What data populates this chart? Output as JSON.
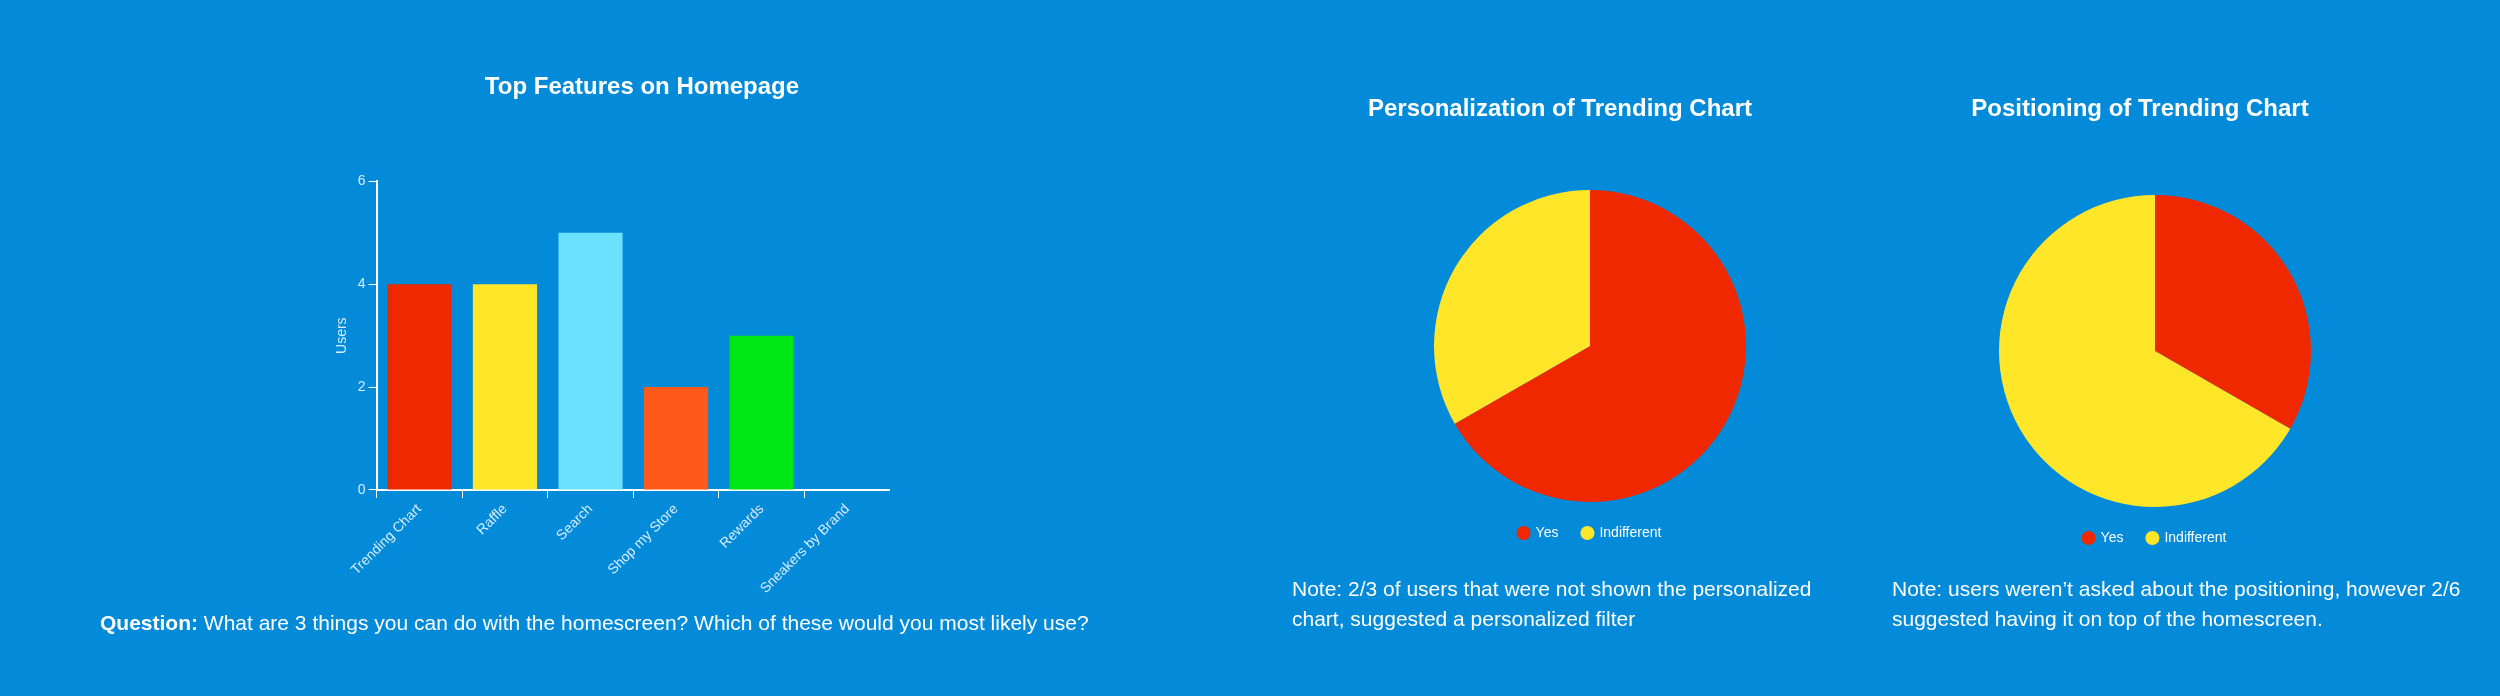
{
  "chart_data": [
    {
      "type": "bar",
      "title": "Top Features on Homepage",
      "ylabel": "Users",
      "categories": [
        "Trending Chart",
        "Raffle",
        "Search",
        "Shop my Store",
        "Rewards",
        "Sneakers by Brand"
      ],
      "values": [
        4,
        4,
        5,
        2,
        3,
        0
      ],
      "colors": [
        "#f02800",
        "#ffe629",
        "#6ce0ff",
        "#ff5a1a",
        "#00e813",
        null
      ],
      "ylim": [
        0,
        6
      ],
      "yticks": [
        0,
        2,
        4,
        6
      ],
      "grid": false,
      "legend": false,
      "annotations": [
        "Question: What are 3 things you can do with the homescreen? Which of these would you most likely use?"
      ]
    },
    {
      "type": "pie",
      "title": "Personalization of Trending Chart",
      "categories": [
        "Yes",
        "Indifferent"
      ],
      "values": [
        66.7,
        33.3
      ],
      "colors": [
        "#f02800",
        "#ffe629"
      ],
      "legend": "bottom",
      "annotations": [
        "Note: 2/3 of users that were not shown the personalized chart, suggested a personalized filter"
      ]
    },
    {
      "type": "pie",
      "title": "Positioning of Trending Chart",
      "categories": [
        "Yes",
        "Indifferent"
      ],
      "values": [
        33.3,
        66.7
      ],
      "colors": [
        "#f02800",
        "#ffe629"
      ],
      "legend": "bottom",
      "annotations": [
        "Note: users weren’t asked about the positioning, however 2/6 suggested having it on top of the homescreen."
      ]
    }
  ]
}
